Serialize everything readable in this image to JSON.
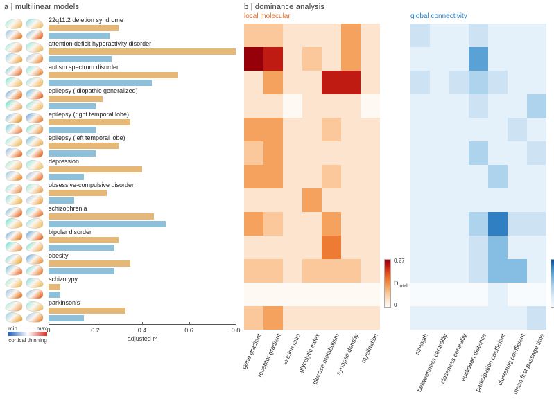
{
  "panelA": {
    "title": "a | multilinear models",
    "axis": {
      "label": "adjusted r²",
      "min": 0,
      "max": 0.8,
      "ticks": [
        0,
        0.2,
        0.4,
        0.6,
        0.8
      ]
    },
    "bar_colors": {
      "top": "#e6b877",
      "bot": "#8fc0d9"
    },
    "rows": [
      {
        "label": "22q11.2 deletion syndrome",
        "top": 0.3,
        "bot": 0.26
      },
      {
        "label": "attention deficit hyperactivity disorder",
        "top": 0.8,
        "bot": 0.27
      },
      {
        "label": "autism spectrum disorder",
        "top": 0.55,
        "bot": 0.44
      },
      {
        "label": "epilepsy (idiopathic generalized)",
        "top": 0.23,
        "bot": 0.2
      },
      {
        "label": "epilepsy (right temporal lobe)",
        "top": 0.35,
        "bot": 0.2
      },
      {
        "label": "epilepsy (left temporal lobe)",
        "top": 0.3,
        "bot": 0.2
      },
      {
        "label": "depression",
        "top": 0.4,
        "bot": 0.15
      },
      {
        "label": "obsessive-compulsive disorder",
        "top": 0.25,
        "bot": 0.11
      },
      {
        "label": "schizophrenia",
        "top": 0.45,
        "bot": 0.5
      },
      {
        "label": "bipolar disorder",
        "top": 0.3,
        "bot": 0.28
      },
      {
        "label": "obesity",
        "top": 0.35,
        "bot": 0.28
      },
      {
        "label": "schizotypy",
        "top": 0.05,
        "bot": 0.05
      },
      {
        "label": "parkinson's",
        "top": 0.33,
        "bot": 0.15
      }
    ],
    "thinning_bar": {
      "min": "min",
      "max": "max",
      "label": "cortical thinning",
      "grad_colors": [
        "#1f5fbf",
        "#ffffff",
        "#d62d20"
      ]
    }
  },
  "panelB": {
    "title": "b | dominance analysis",
    "local": {
      "subtitle": "local molecular",
      "subtitle_color": "#e06a2a",
      "xlabels": [
        "gene gradient",
        "receptor gradient",
        "exc:inh ratio",
        "glycolytic index",
        "glucose metabolism",
        "synapse density",
        "myelination"
      ],
      "colormap": [
        "#fff9f4",
        "#fde4cf",
        "#fac89a",
        "#f4a25e",
        "#ed7b33",
        "#e2521c",
        "#bf1b13",
        "#960009"
      ],
      "values": [
        [
          0.06,
          0.09,
          0.03,
          0.05,
          0.04,
          0.1,
          0.02
        ],
        [
          0.26,
          0.24,
          0.05,
          0.06,
          0.03,
          0.13,
          0.03
        ],
        [
          0.05,
          0.1,
          0.05,
          0.04,
          0.22,
          0.25,
          0.02
        ],
        [
          0.03,
          0.03,
          0.01,
          0.02,
          0.02,
          0.02,
          0.01
        ],
        [
          0.1,
          0.1,
          0.05,
          0.04,
          0.09,
          0.05,
          0.02
        ],
        [
          0.07,
          0.1,
          0.05,
          0.03,
          0.05,
          0.04,
          0.02
        ],
        [
          0.12,
          0.12,
          0.04,
          0.03,
          0.08,
          0.04,
          0.02
        ],
        [
          0.04,
          0.04,
          0.02,
          0.1,
          0.03,
          0.03,
          0.02
        ],
        [
          0.1,
          0.08,
          0.04,
          0.05,
          0.13,
          0.04,
          0.05
        ],
        [
          0.04,
          0.04,
          0.02,
          0.04,
          0.14,
          0.03,
          0.02
        ],
        [
          0.06,
          0.06,
          0.04,
          0.06,
          0.06,
          0.08,
          0.04
        ],
        [
          0.01,
          0.01,
          0.01,
          0.01,
          0.01,
          0.01,
          0.01
        ],
        [
          0.06,
          0.12,
          0.03,
          0.04,
          0.05,
          0.04,
          0.03
        ]
      ]
    },
    "global": {
      "subtitle": "global connectivity",
      "subtitle_color": "#2b7fc4",
      "xlabels": [
        "strength",
        "betweenness centrality",
        "closeness centrality",
        "euclidean distance",
        "participation coefficient",
        "clustering coefficient",
        "mean first passage time"
      ],
      "colormap": [
        "#f7fbfe",
        "#e4f0fa",
        "#cde3f4",
        "#aed3ec",
        "#86bde2",
        "#5aa2d5",
        "#2f7fc2",
        "#0b4f99"
      ],
      "values": [
        [
          0.06,
          0.03,
          0.04,
          0.06,
          0.03,
          0.04,
          0.04
        ],
        [
          0.04,
          0.03,
          0.03,
          0.2,
          0.05,
          0.04,
          0.04
        ],
        [
          0.06,
          0.04,
          0.06,
          0.12,
          0.08,
          0.05,
          0.05
        ],
        [
          0.02,
          0.02,
          0.02,
          0.06,
          0.04,
          0.02,
          0.1
        ],
        [
          0.05,
          0.03,
          0.03,
          0.04,
          0.04,
          0.06,
          0.04
        ],
        [
          0.04,
          0.03,
          0.03,
          0.1,
          0.04,
          0.04,
          0.06
        ],
        [
          0.03,
          0.02,
          0.02,
          0.05,
          0.12,
          0.03,
          0.03
        ],
        [
          0.02,
          0.02,
          0.02,
          0.03,
          0.02,
          0.02,
          0.02
        ],
        [
          0.05,
          0.04,
          0.05,
          0.1,
          0.23,
          0.06,
          0.06
        ],
        [
          0.04,
          0.03,
          0.04,
          0.06,
          0.16,
          0.04,
          0.04
        ],
        [
          0.04,
          0.03,
          0.03,
          0.06,
          0.14,
          0.16,
          0.04
        ],
        [
          0.01,
          0.01,
          0.01,
          0.01,
          0.02,
          0.01,
          0.01
        ],
        [
          0.02,
          0.02,
          0.02,
          0.03,
          0.04,
          0.03,
          0.06
        ]
      ]
    },
    "colorbar": {
      "min": "0",
      "max": "0.27",
      "symbol": "D",
      "sub": "total"
    }
  },
  "fontsize": {
    "title": 11,
    "label": 9
  }
}
